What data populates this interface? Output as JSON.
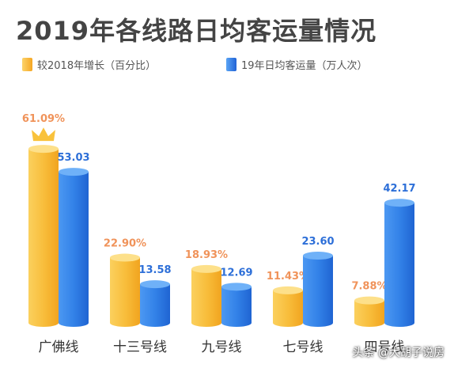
{
  "chart_data": {
    "type": "bar",
    "title": "2019年各线路日均客运量情况",
    "categories": [
      "广佛线",
      "十三号线",
      "九号线",
      "七号线",
      "四号线"
    ],
    "series": [
      {
        "name": "较2018年增长（百分比）",
        "values": [
          61.09,
          22.9,
          18.93,
          11.43,
          7.88
        ],
        "labels": [
          "61.09%",
          "22.90%",
          "18.93%",
          "11.43%",
          "7.88%"
        ],
        "color": "#f7b42c"
      },
      {
        "name": "19年日均客运量（万人次）",
        "values": [
          53.03,
          13.58,
          12.69,
          23.6,
          42.17
        ],
        "labels": [
          "53.03",
          "13.58",
          "12.69",
          "23.60",
          "42.17"
        ],
        "color": "#2f7be3"
      }
    ],
    "legend": "top-left",
    "grid": false,
    "highlight_icon": "crown-icon"
  },
  "watermark": "头条 @大胡子说房"
}
